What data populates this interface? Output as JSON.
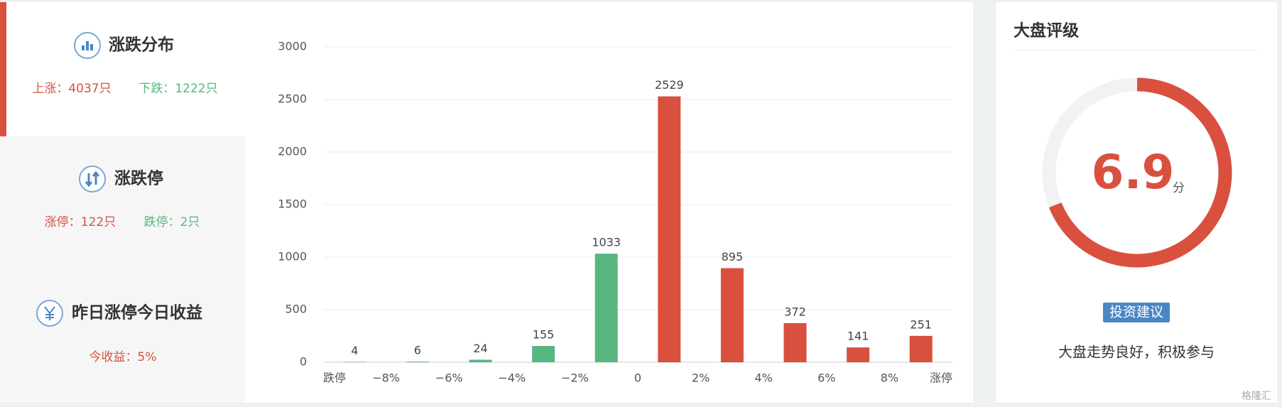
{
  "panels": [
    {
      "title": "涨跌分布",
      "items": [
        {
          "text": "上涨：4037只",
          "color": "#d9503f"
        },
        {
          "text": "下跌：1222只",
          "color": "#57b77f"
        }
      ]
    },
    {
      "title": "涨跌停",
      "items": [
        {
          "text": "涨停：122只",
          "color": "#d9503f"
        },
        {
          "text": "跌停：2只",
          "color": "#57b77f"
        }
      ]
    },
    {
      "title": "昨日涨停今日收益",
      "items": [
        {
          "text": "今收益：5%",
          "color": "#d9503f"
        }
      ]
    }
  ],
  "chart_data": {
    "type": "histogram",
    "bins": [
      "跌停",
      "−8%",
      "−6%",
      "−4%",
      "−2%",
      "0",
      "2%",
      "4%",
      "6%",
      "8%",
      "涨停"
    ],
    "values": [
      4,
      6,
      24,
      155,
      1033,
      2529,
      895,
      372,
      141,
      251
    ],
    "colors": [
      "#57b77f",
      "#57b77f",
      "#57b77f",
      "#57b77f",
      "#57b77f",
      "#d9503f",
      "#d9503f",
      "#d9503f",
      "#d9503f",
      "#d9503f"
    ],
    "ylim": [
      0,
      3000
    ],
    "yticks": [
      0,
      500,
      1000,
      1500,
      2000,
      2500,
      3000
    ],
    "grid": true
  },
  "rating": {
    "title": "大盘评级",
    "score": 6.9,
    "gauge_range": [
      0,
      10
    ],
    "unit": "分",
    "color": "#d9503f",
    "button": "投资建议",
    "advice": "大盘走势良好，积极参与"
  },
  "watermark": "格隆汇"
}
